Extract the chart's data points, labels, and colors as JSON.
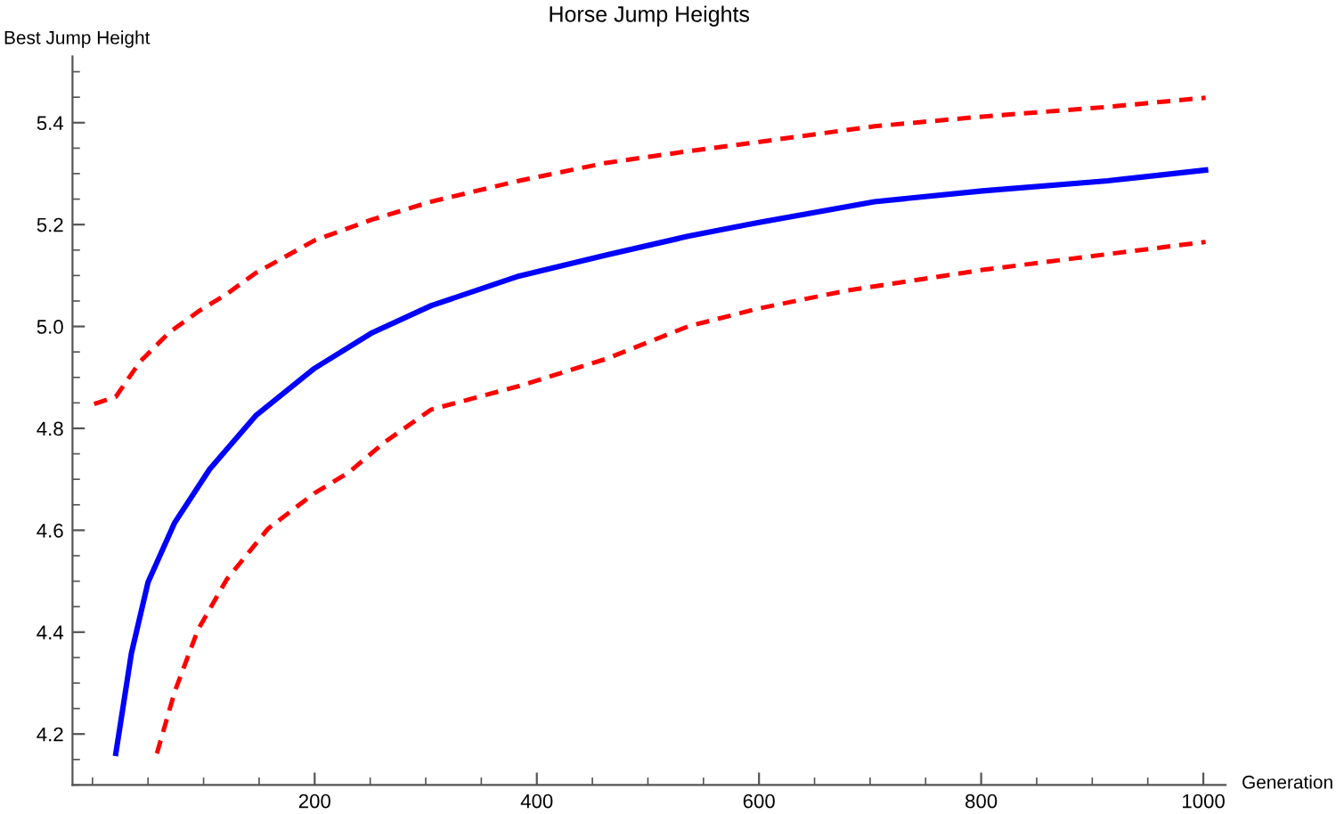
{
  "chart_data": {
    "type": "line",
    "title": "Horse Jump Heights",
    "xlabel": "Generation",
    "ylabel": "Best Jump Height",
    "xlim": [
      -18,
      1020
    ],
    "ylim": [
      4.1,
      5.53
    ],
    "xticks": [
      200,
      400,
      600,
      800,
      1000
    ],
    "yticks": [
      4.2,
      4.4,
      4.6,
      4.8,
      {
        "value": 5.0,
        "label": "5.0"
      },
      5.2,
      5.4
    ],
    "grid": false,
    "legend": false,
    "marker": "none",
    "series": [
      {
        "color": "#ff0000",
        "line_style": "dashed",
        "x": [
          1.5,
          21,
          42.5,
          69,
          95,
          121,
          147,
          200,
          252,
          305,
          384,
          462,
          536,
          599,
          704,
          801,
          914,
          1002
        ],
        "values": [
          4.848,
          4.862,
          4.93,
          4.988,
          5.029,
          5.064,
          5.105,
          5.169,
          5.21,
          5.245,
          5.286,
          5.321,
          5.344,
          5.362,
          5.393,
          5.412,
          5.431,
          5.449
        ]
      },
      {
        "color": "#0000ff",
        "line_style": "solid",
        "x": [
          21,
          35,
          50,
          74,
          105.5,
          147,
          200,
          252,
          305,
          384,
          462,
          536,
          599,
          704,
          801,
          914,
          1002
        ],
        "values": [
          4.162,
          4.358,
          4.498,
          4.615,
          4.72,
          4.825,
          4.918,
          4.988,
          5.041,
          5.099,
          5.14,
          5.177,
          5.204,
          5.245,
          5.266,
          5.286,
          5.307
        ]
      },
      {
        "color": "#ff0000",
        "line_style": "dashed",
        "x": [
          58,
          74,
          95,
          121,
          158,
          200,
          231,
          263,
          305,
          384,
          462,
          536,
          599,
          678,
          801,
          914,
          1002
        ],
        "values": [
          4.162,
          4.283,
          4.405,
          4.504,
          4.603,
          4.673,
          4.714,
          4.773,
          4.837,
          4.883,
          4.936,
          5.0,
          5.035,
          5.07,
          5.111,
          5.142,
          5.166
        ]
      }
    ]
  }
}
